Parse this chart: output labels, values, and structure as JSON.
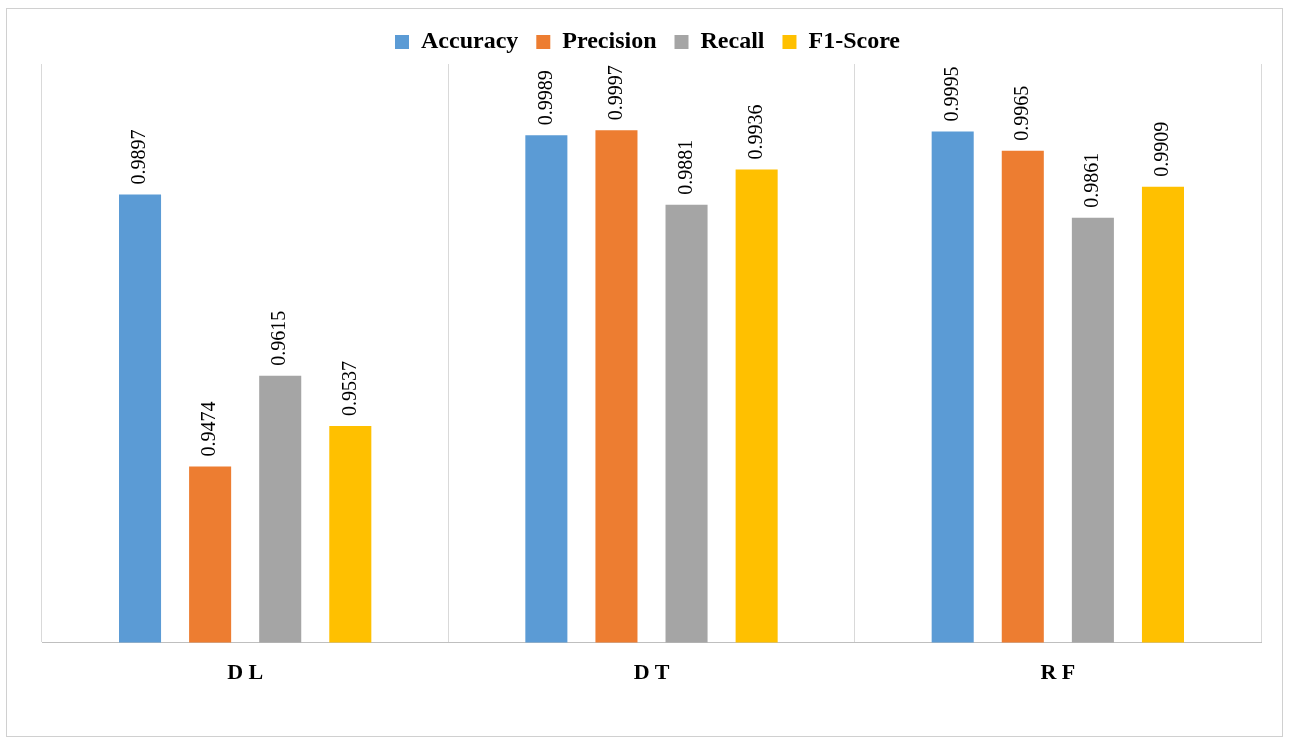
{
  "chart_data": {
    "type": "bar",
    "categories": [
      "D L",
      "D T",
      "R F"
    ],
    "series": [
      {
        "name": "Accuracy",
        "color": "#5b9bd5",
        "values": [
          0.9897,
          0.9989,
          0.9995
        ]
      },
      {
        "name": "Precision",
        "color": "#ed7d31",
        "values": [
          0.9474,
          0.9997,
          0.9965
        ]
      },
      {
        "name": "Recall",
        "color": "#a5a5a5",
        "values": [
          0.9615,
          0.9881,
          0.9861
        ]
      },
      {
        "name": "F1-Score",
        "color": "#ffc000",
        "values": [
          0.9537,
          0.9936,
          0.9909
        ]
      }
    ],
    "ylim": [
      0.92,
      1.01
    ],
    "data_labels": true,
    "grid": "x",
    "legend": "top"
  }
}
